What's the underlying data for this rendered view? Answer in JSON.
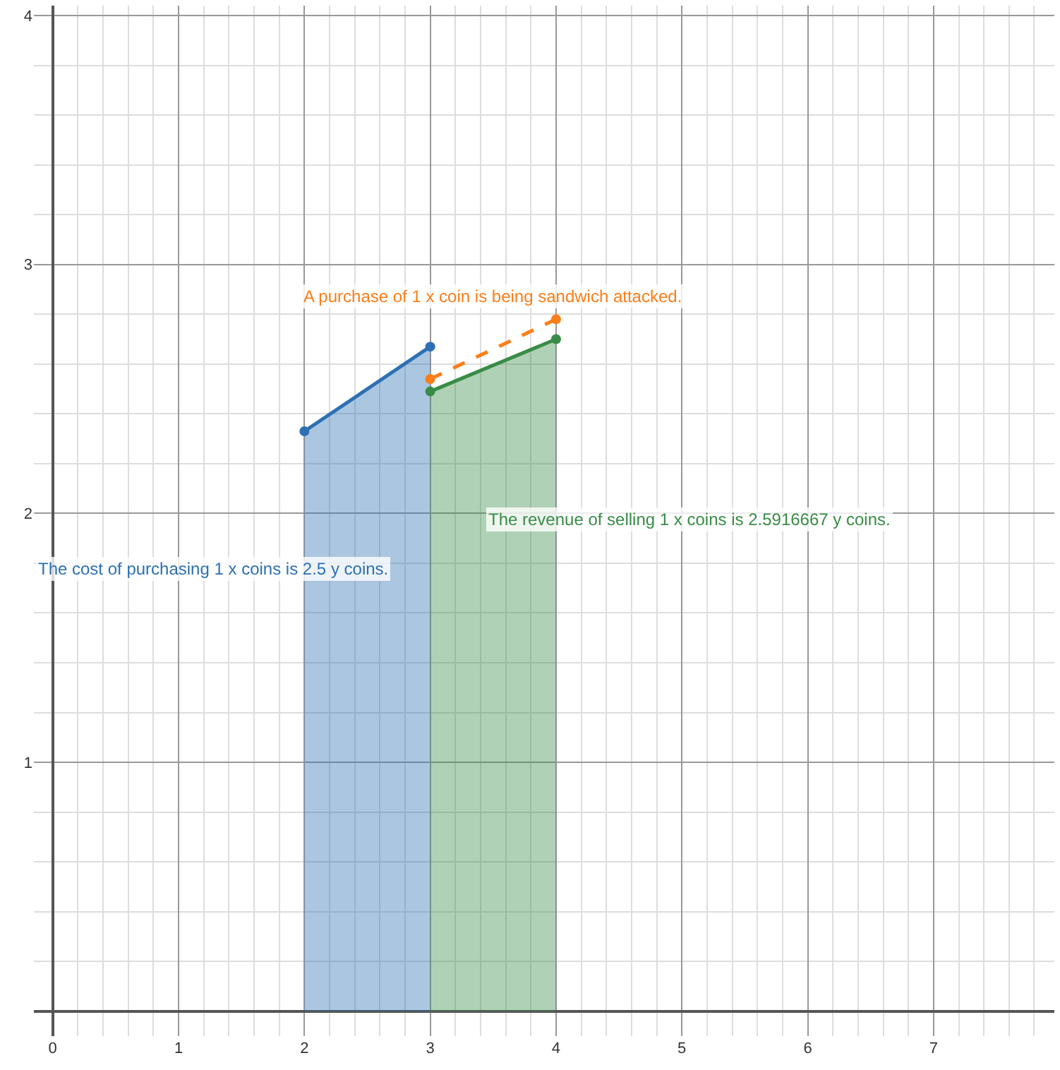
{
  "chart_data": {
    "type": "area",
    "series": [
      {
        "color": "#2d70b3",
        "x": [
          2,
          3
        ],
        "values": [
          2.33,
          2.67
        ]
      },
      {
        "color": "#388c46",
        "x": [
          3,
          4
        ],
        "values": [
          2.49,
          2.7
        ]
      },
      {
        "type": "line",
        "color": "#fa7e19",
        "line_style": "dashed",
        "x": [
          3,
          4
        ],
        "values": [
          2.54,
          2.78
        ]
      }
    ],
    "annotations": [
      "A purchase of 1 x coin is being sandwich attacked.",
      "The cost of purchasing 1 x coins is 2.5 y coins.",
      "The revenue of selling 1 x coins is 2.5916667 y coins."
    ],
    "xlim": [
      -0.15,
      7.96
    ],
    "ylim": [
      -0.1,
      4.04
    ],
    "xticks": [
      0,
      1,
      2,
      3,
      4,
      5,
      6,
      7
    ],
    "yticks": [
      1,
      2,
      3,
      4
    ],
    "grid": true,
    "marker": "circle",
    "legend": false
  }
}
